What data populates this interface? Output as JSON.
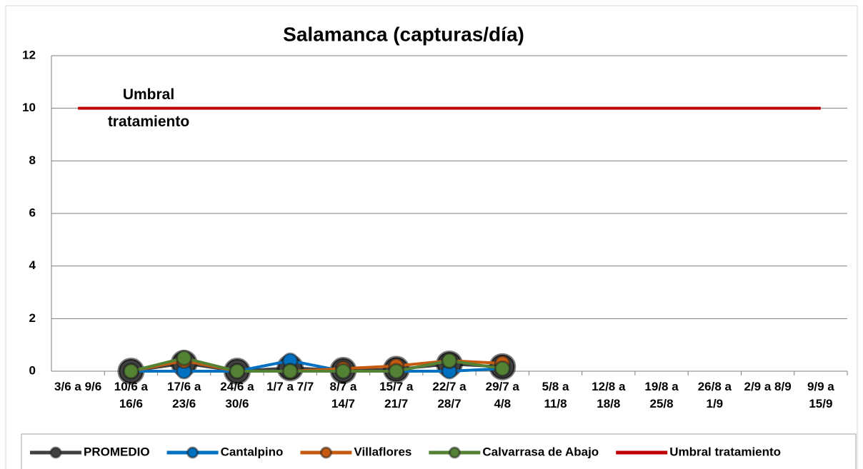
{
  "chart_data": {
    "type": "line",
    "title": "Salamanca (capturas/día)",
    "annotations": [
      "Umbral tratamiento"
    ],
    "categories": [
      "3/6 a 9/6",
      "10/6 a 16/6",
      "17/6 a 23/6",
      "24/6 a 30/6",
      "1/7 a 7/7",
      "8/7 a 14/7",
      "15/7 a 21/7",
      "22/7 a 28/7",
      "29/7 a 4/8",
      "5/8 a 11/8",
      "12/8 a 18/8",
      "19/8 a 25/8",
      "26/8 a 1/9",
      "2/9 a 8/9",
      "9/9 a 15/9"
    ],
    "series": [
      {
        "name": "PROMEDIO",
        "color": "#404040",
        "values": [
          null,
          0,
          0.3,
          0,
          0.13,
          0.03,
          0.07,
          0.27,
          0.17,
          null,
          null,
          null,
          null,
          null,
          null
        ]
      },
      {
        "name": "Cantalpino",
        "color": "#0070c0",
        "values": [
          null,
          0,
          0,
          0,
          0.4,
          0,
          0,
          0,
          0.1,
          null,
          null,
          null,
          null,
          null,
          null
        ]
      },
      {
        "name": "Villaflores",
        "color": "#c55a11",
        "values": [
          null,
          0,
          0.4,
          0,
          0,
          0.1,
          0.2,
          0.4,
          0.3,
          null,
          null,
          null,
          null,
          null,
          null
        ]
      },
      {
        "name": "Calvarrasa de Abajo",
        "color": "#548235",
        "values": [
          null,
          0,
          0.5,
          0,
          0,
          0,
          0,
          0.4,
          0.1,
          null,
          null,
          null,
          null,
          null,
          null
        ]
      },
      {
        "name": "Umbral tratamiento",
        "color": "#c00000",
        "values": [
          10,
          10,
          10,
          10,
          10,
          10,
          10,
          10,
          10,
          10,
          10,
          10,
          10,
          10,
          10
        ]
      }
    ],
    "ylim": [
      0,
      12
    ],
    "yticks": [
      0,
      2,
      4,
      6,
      8,
      10,
      12
    ],
    "grid": true,
    "legend": "bottom"
  }
}
